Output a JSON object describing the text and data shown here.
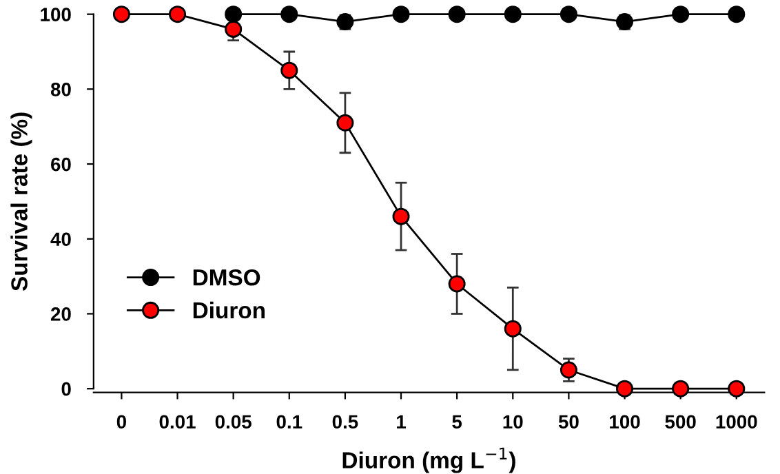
{
  "chart_data": {
    "type": "line",
    "xlabel": "Diuron (mg L$^{−1}$)",
    "ylabel": "Survival rate (%)",
    "categories": [
      "0",
      "0.01",
      "0.05",
      "0.1",
      "0.5",
      "1",
      "5",
      "10",
      "50",
      "100",
      "500",
      "1000"
    ],
    "series": [
      {
        "name": "DMSO",
        "color": "#000000",
        "values": [
          null,
          null,
          100,
          100,
          98,
          100,
          100,
          100,
          100,
          98,
          100,
          100
        ],
        "errors": [
          null,
          null,
          null,
          null,
          2,
          null,
          null,
          null,
          null,
          2,
          null,
          null
        ]
      },
      {
        "name": "Diuron",
        "color": "#ff0000",
        "values": [
          100,
          100,
          96,
          85,
          71,
          46,
          28,
          16,
          5,
          0,
          0,
          0
        ],
        "errors": [
          null,
          null,
          3,
          5,
          8,
          9,
          8,
          11,
          3,
          null,
          null,
          null
        ]
      }
    ],
    "ylim": [
      0,
      100
    ],
    "yticks": [
      0,
      20,
      40,
      60,
      80,
      100
    ],
    "grid": false,
    "legend": "bottom left",
    "marker": "circle",
    "line_style": "solid"
  }
}
